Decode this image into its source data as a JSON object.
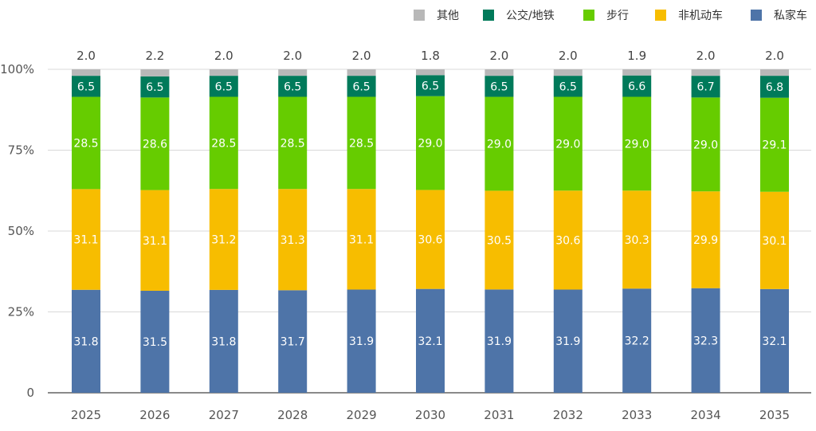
{
  "chart_data": {
    "type": "bar",
    "stacked": true,
    "percent": true,
    "categories": [
      "2025",
      "2026",
      "2027",
      "2028",
      "2029",
      "2030",
      "2031",
      "2032",
      "2033",
      "2034",
      "2035"
    ],
    "series": [
      {
        "name": "私家车",
        "color": "#4e74a8",
        "values": [
          31.8,
          31.5,
          31.8,
          31.7,
          31.9,
          32.1,
          31.9,
          31.9,
          32.2,
          32.3,
          32.1
        ]
      },
      {
        "name": "非机动车",
        "color": "#f7bd00",
        "values": [
          31.1,
          31.1,
          31.2,
          31.3,
          31.1,
          30.6,
          30.5,
          30.6,
          30.3,
          29.9,
          30.1
        ]
      },
      {
        "name": "步行",
        "color": "#66cc00",
        "values": [
          28.5,
          28.6,
          28.5,
          28.5,
          28.5,
          29.0,
          29.0,
          29.0,
          29.0,
          29.0,
          29.1
        ]
      },
      {
        "name": "公交/地铁",
        "color": "#007a5a",
        "values": [
          6.5,
          6.5,
          6.5,
          6.5,
          6.5,
          6.5,
          6.5,
          6.5,
          6.6,
          6.7,
          6.8
        ]
      },
      {
        "name": "其他",
        "color": "#b8b8b8",
        "values": [
          2.0,
          2.2,
          2.0,
          2.0,
          2.0,
          1.8,
          2.0,
          2.0,
          1.9,
          2.0,
          2.0
        ]
      }
    ],
    "yticks": [
      "0",
      "25%",
      "50%",
      "75%",
      "100%"
    ],
    "ylim": [
      0,
      100
    ],
    "legend_position": "top-right",
    "legend_order": [
      "其他",
      "公交/地铁",
      "步行",
      "非机动车",
      "私家车"
    ],
    "grid": true
  }
}
